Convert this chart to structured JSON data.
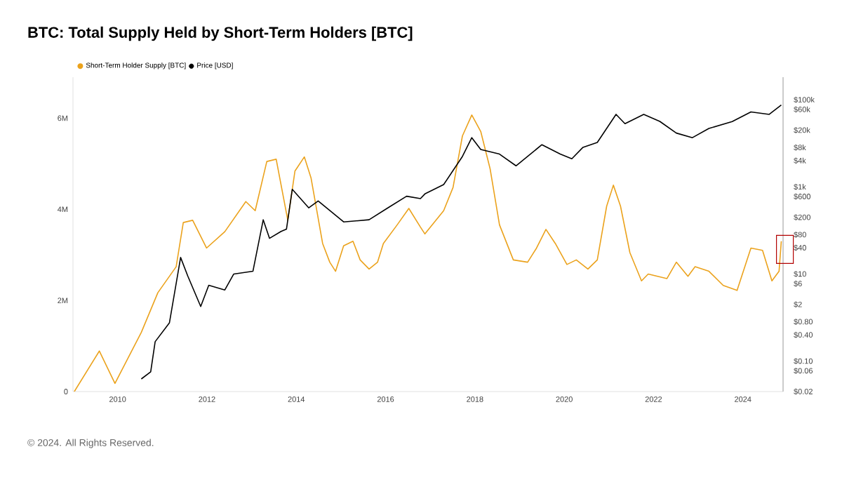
{
  "chart_data": {
    "type": "line",
    "title": "BTC: Total Supply Held by Short-Term Holders [BTC]",
    "annotations": [
      "© 2024. All Rights Reserved."
    ],
    "legend": "top left",
    "xlim": [
      2009.0,
      2024.9
    ],
    "xticks": [
      2010,
      2012,
      2014,
      2016,
      2018,
      2020,
      2022,
      2024
    ],
    "ylim": [
      0,
      6.9
    ],
    "yticks": [
      0,
      {
        "value": 2,
        "label": "2M"
      },
      {
        "value": 4,
        "label": "4M"
      },
      {
        "value": 6,
        "label": "6M"
      }
    ],
    "log": "y2",
    "y2lim": [
      0.02,
      330000
    ],
    "y2ticks": [
      {
        "value": 0.02,
        "label": "$0.02"
      },
      {
        "value": 0.06,
        "label": "$0.06"
      },
      {
        "value": 0.1,
        "label": "$0.10"
      },
      {
        "value": 0.4,
        "label": "$0.40"
      },
      {
        "value": 0.8,
        "label": "$0.80"
      },
      {
        "value": 2,
        "label": "$2"
      },
      {
        "value": 6,
        "label": "$6"
      },
      {
        "value": 10,
        "label": "$10"
      },
      {
        "value": 40,
        "label": "$40"
      },
      {
        "value": 80,
        "label": "$80"
      },
      {
        "value": 200,
        "label": "$200"
      },
      {
        "value": 600,
        "label": "$600"
      },
      {
        "value": 1000,
        "label": "$1k"
      },
      {
        "value": 4000,
        "label": "$4k"
      },
      {
        "value": 8000,
        "label": "$8k"
      },
      {
        "value": 20000,
        "label": "$20k"
      },
      {
        "value": 60000,
        "label": "$60k"
      },
      {
        "value": 100000,
        "label": "$100k"
      }
    ],
    "series": [
      {
        "name": "Short-Term Holder Supply [BTC]",
        "color": "#eba21c",
        "x": [
          2009.03,
          2009.59,
          2009.94,
          2010.53,
          2010.9,
          2011.31,
          2011.47,
          2011.68,
          2011.99,
          2012.4,
          2012.87,
          2013.08,
          2013.34,
          2013.55,
          2013.81,
          2013.97,
          2014.18,
          2014.33,
          2014.59,
          2014.75,
          2014.88,
          2015.06,
          2015.27,
          2015.43,
          2015.63,
          2015.82,
          2015.95,
          2016.26,
          2016.52,
          2016.78,
          2016.88,
          2017.3,
          2017.51,
          2017.72,
          2017.93,
          2018.13,
          2018.34,
          2018.55,
          2018.86,
          2019.18,
          2019.38,
          2019.59,
          2019.8,
          2020.06,
          2020.27,
          2020.53,
          2020.74,
          2020.95,
          2021.1,
          2021.26,
          2021.47,
          2021.73,
          2021.88,
          2022.3,
          2022.51,
          2022.77,
          2022.93,
          2023.24,
          2023.56,
          2023.87,
          2024.18,
          2024.44,
          2024.65,
          2024.81,
          2024.86
        ],
        "values": [
          0,
          0.89,
          0.18,
          1.3,
          2.17,
          2.74,
          3.71,
          3.76,
          3.15,
          3.51,
          4.17,
          3.97,
          5.05,
          5.1,
          3.76,
          4.84,
          5.15,
          4.69,
          3.25,
          2.84,
          2.64,
          3.2,
          3.3,
          2.89,
          2.69,
          2.84,
          3.25,
          3.66,
          4.02,
          3.61,
          3.46,
          3.97,
          4.48,
          5.61,
          6.07,
          5.71,
          4.89,
          3.66,
          2.89,
          2.84,
          3.15,
          3.56,
          3.25,
          2.79,
          2.89,
          2.69,
          2.89,
          4.07,
          4.53,
          4.07,
          3.05,
          2.43,
          2.58,
          2.48,
          2.84,
          2.53,
          2.74,
          2.64,
          2.33,
          2.22,
          3.15,
          3.1,
          2.43,
          2.64,
          3.3
        ]
      },
      {
        "name": "Price [USD]",
        "color": "#000000",
        "axis": "y2",
        "x": [
          2010.53,
          2010.74,
          2010.84,
          2011.16,
          2011.41,
          2011.57,
          2011.86,
          2012.04,
          2012.4,
          2012.6,
          2013.03,
          2013.26,
          2013.4,
          2013.66,
          2013.78,
          2013.91,
          2014.28,
          2014.49,
          2015.06,
          2015.63,
          2016.05,
          2016.47,
          2016.78,
          2016.88,
          2017.3,
          2017.51,
          2017.72,
          2017.93,
          2018.13,
          2018.55,
          2018.92,
          2019.5,
          2019.91,
          2020.17,
          2020.42,
          2020.74,
          2021.16,
          2021.36,
          2021.78,
          2022.14,
          2022.51,
          2022.87,
          2023.24,
          2023.76,
          2024.18,
          2024.59,
          2024.86
        ],
        "values": [
          0.039,
          0.057,
          0.28,
          0.76,
          24,
          9,
          1.8,
          5.5,
          4.3,
          10,
          11.6,
          176,
          66,
          95,
          107,
          880,
          330,
          476,
          157,
          176,
          330,
          610,
          540,
          690,
          1130,
          2370,
          5000,
          13500,
          7250,
          5670,
          3050,
          9300,
          5670,
          4430,
          8100,
          10500,
          46300,
          28300,
          46300,
          31900,
          17200,
          13500,
          22000,
          31600,
          52500,
          46300,
          76000
        ]
      }
    ]
  }
}
